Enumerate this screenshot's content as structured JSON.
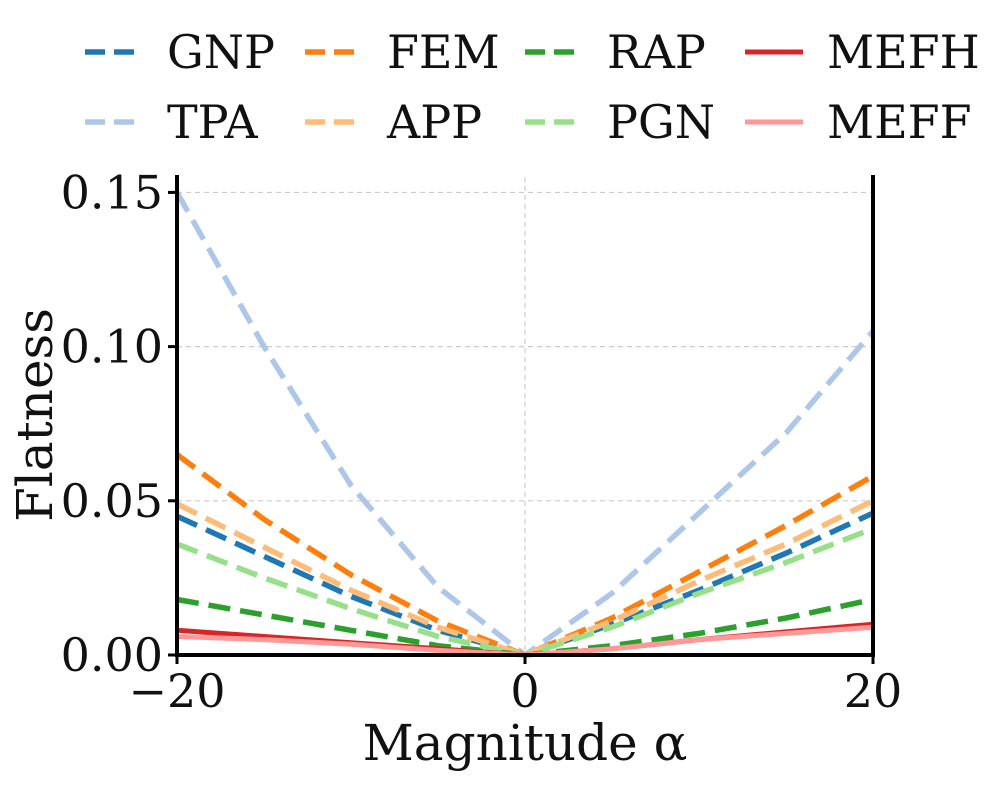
{
  "chart_data": {
    "type": "line",
    "xlabel": "Magnitude α",
    "ylabel": "Flatness",
    "xlim": [
      -20,
      20
    ],
    "ylim": [
      0,
      0.155
    ],
    "xticks": [
      {
        "value": -20,
        "label": "−20"
      },
      {
        "value": 0,
        "label": "0"
      },
      {
        "value": 20,
        "label": "20"
      }
    ],
    "yticks": [
      {
        "value": 0.0,
        "label": "0.00"
      },
      {
        "value": 0.05,
        "label": "0.05"
      },
      {
        "value": 0.1,
        "label": "0.10"
      },
      {
        "value": 0.15,
        "label": "0.15"
      }
    ],
    "grid": true,
    "legend_position": "top",
    "x": [
      -20,
      -15,
      -10,
      -5,
      0,
      5,
      10,
      15,
      20
    ],
    "series": [
      {
        "name": "GNP",
        "color": "#1f77b4",
        "style": "dashed",
        "values": [
          0.045,
          0.032,
          0.019,
          0.008,
          0.0,
          0.01,
          0.021,
          0.033,
          0.046
        ]
      },
      {
        "name": "TPA",
        "color": "#aec7e8",
        "style": "dashed",
        "values": [
          0.15,
          0.1,
          0.055,
          0.022,
          0.0,
          0.02,
          0.046,
          0.072,
          0.105
        ]
      },
      {
        "name": "FEM",
        "color": "#ff7f0e",
        "style": "dashed",
        "values": [
          0.065,
          0.044,
          0.026,
          0.011,
          0.0,
          0.012,
          0.027,
          0.042,
          0.058
        ]
      },
      {
        "name": "APP",
        "color": "#ffbb78",
        "style": "dashed",
        "values": [
          0.049,
          0.035,
          0.021,
          0.009,
          0.0,
          0.011,
          0.024,
          0.036,
          0.05
        ]
      },
      {
        "name": "RAP",
        "color": "#2ca02c",
        "style": "dashed",
        "values": [
          0.018,
          0.013,
          0.008,
          0.003,
          0.0,
          0.003,
          0.007,
          0.012,
          0.018
        ]
      },
      {
        "name": "PGN",
        "color": "#98df8a",
        "style": "dashed",
        "values": [
          0.036,
          0.025,
          0.015,
          0.006,
          0.0,
          0.009,
          0.02,
          0.03,
          0.041
        ]
      },
      {
        "name": "MEFH",
        "color": "#d62728",
        "style": "solid",
        "values": [
          0.008,
          0.006,
          0.004,
          0.002,
          0.0,
          0.002,
          0.005,
          0.0075,
          0.01
        ]
      },
      {
        "name": "MEFF",
        "color": "#ff9896",
        "style": "solid",
        "values": [
          0.006,
          0.005,
          0.0035,
          0.0015,
          0.0,
          0.002,
          0.005,
          0.007,
          0.009
        ]
      }
    ]
  }
}
